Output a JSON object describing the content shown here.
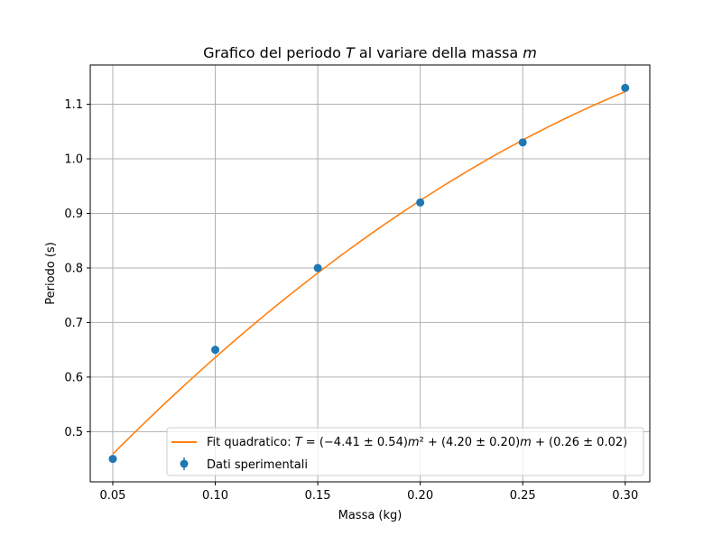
{
  "chart_data": {
    "type": "scatter",
    "title": "Grafico del periodo T al variare della massa m",
    "title_parts": [
      {
        "text": "Grafico del periodo ",
        "italic": false
      },
      {
        "text": "T",
        "italic": true
      },
      {
        "text": " al variare della massa ",
        "italic": false
      },
      {
        "text": "m",
        "italic": true
      }
    ],
    "xlabel": "Massa (kg)",
    "ylabel": "Periodo (s)",
    "xlim": [
      0.039,
      0.312
    ],
    "ylim": [
      0.408,
      1.172
    ],
    "xticks": [
      0.05,
      0.1,
      0.15,
      0.2,
      0.25,
      0.3
    ],
    "xtick_labels": [
      "0.05",
      "0.10",
      "0.15",
      "0.20",
      "0.25",
      "0.30"
    ],
    "yticks": [
      0.5,
      0.6,
      0.7,
      0.8,
      0.9,
      1.0,
      1.1
    ],
    "ytick_labels": [
      "0.5",
      "0.6",
      "0.7",
      "0.8",
      "0.9",
      "1.0",
      "1.1"
    ],
    "grid": true,
    "legend_position": "lower-right",
    "series": [
      {
        "name": "Dati sperimentali",
        "kind": "errorbar-scatter",
        "color": "#1f77b4",
        "x": [
          0.05,
          0.1,
          0.15,
          0.2,
          0.25,
          0.3
        ],
        "y": [
          0.45,
          0.65,
          0.8,
          0.92,
          1.03,
          1.13
        ],
        "yerr": [
          0.005,
          0.005,
          0.005,
          0.005,
          0.005,
          0.005
        ]
      },
      {
        "name": "Fit quadratico: T = (−4.41 ± 0.54)m² + (4.20 ± 0.20)m + (0.26 ± 0.02)",
        "kind": "line",
        "color": "#ff7f0e",
        "coefficients": {
          "a": -4.41,
          "b": 4.2,
          "c": 0.26
        },
        "x": [
          0.05,
          0.1,
          0.15,
          0.2,
          0.25,
          0.3
        ],
        "y": [
          0.459,
          0.636,
          0.791,
          0.924,
          1.034,
          1.123
        ]
      }
    ],
    "legend": {
      "fit_parts": [
        {
          "text": "Fit quadratico: ",
          "italic": false
        },
        {
          "text": "T",
          "italic": true
        },
        {
          "text": " = (−4.41 ± 0.54)",
          "italic": false
        },
        {
          "text": "m",
          "italic": true
        },
        {
          "text": "²",
          "italic": false
        },
        {
          "text": " + (4.20 ± 0.20)",
          "italic": false
        },
        {
          "text": "m",
          "italic": true
        },
        {
          "text": " + (0.26 ± 0.02)",
          "italic": false
        }
      ],
      "data_label": "Dati sperimentali"
    }
  }
}
